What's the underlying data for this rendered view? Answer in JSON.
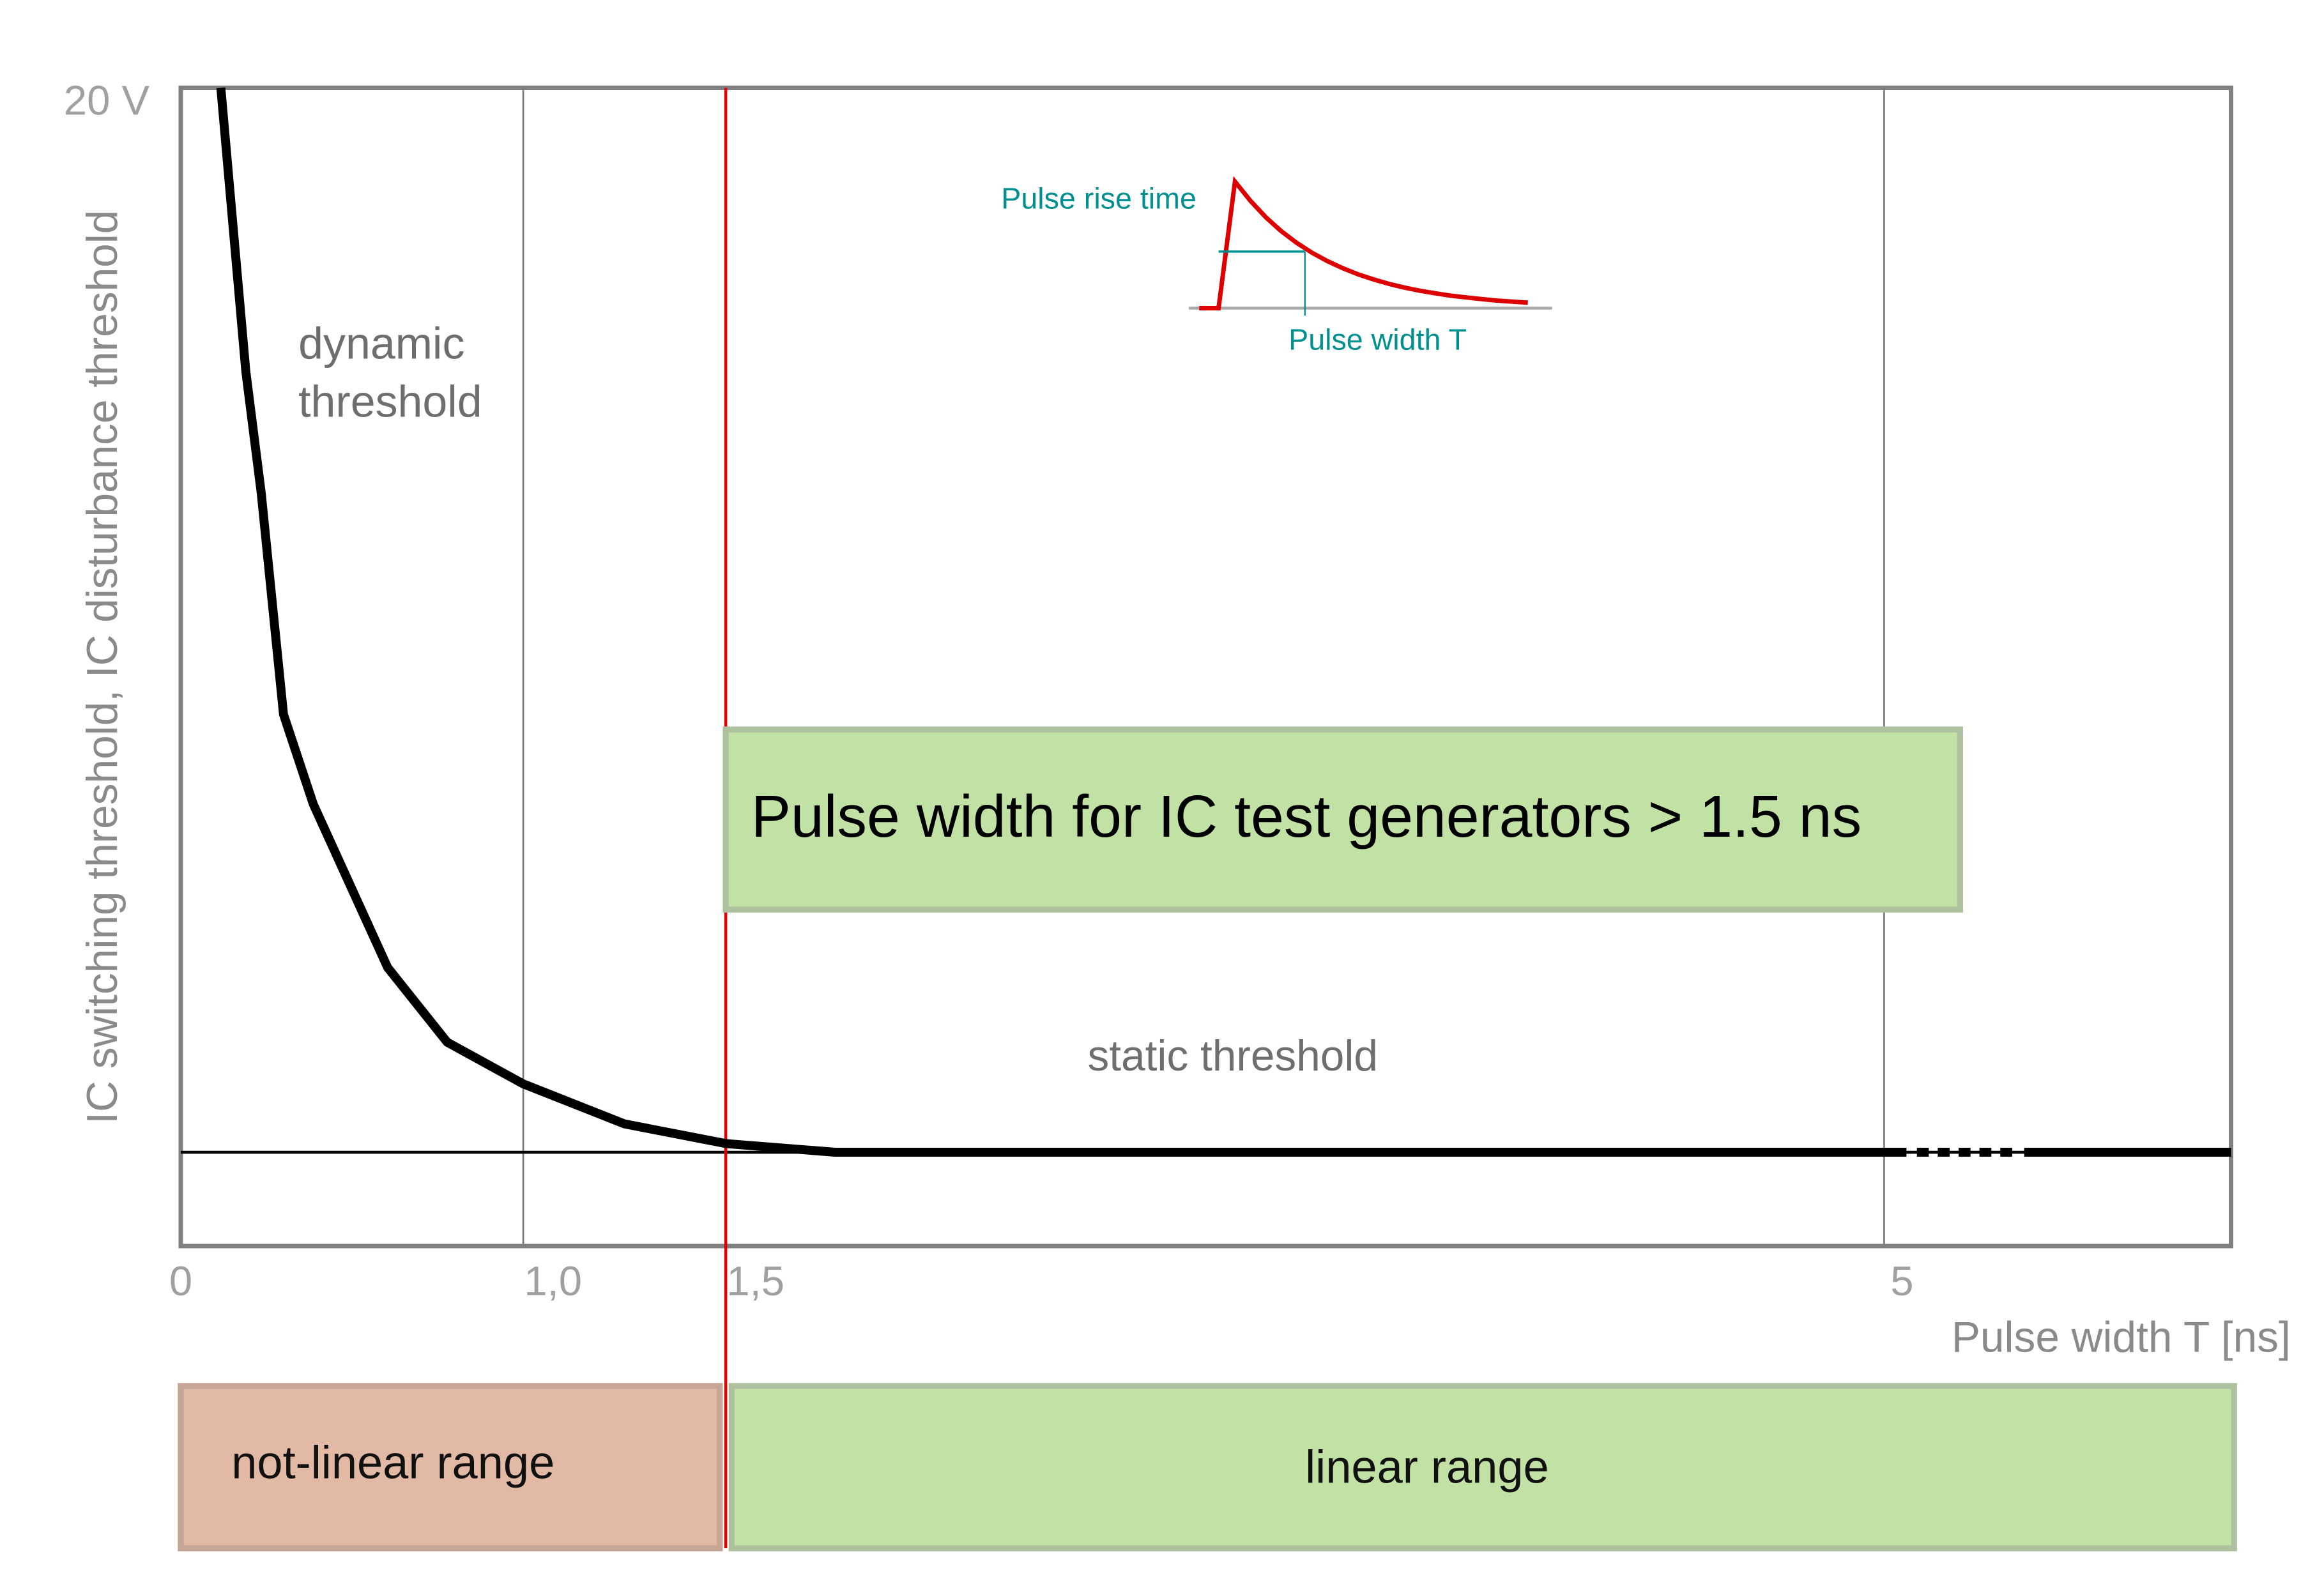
{
  "chart_data": {
    "type": "line",
    "title": "",
    "xlabel": "Pulse width T [ns]",
    "ylabel": "IC switching threshold, IC disturbance threshold",
    "y_max_label": "20 V",
    "ylim": [
      0,
      20
    ],
    "x_ticks": [
      {
        "value": 0,
        "label": "0"
      },
      {
        "value": 1.0,
        "label": "1,0"
      },
      {
        "value": 1.5,
        "label": "1,5"
      },
      {
        "value": 5,
        "label": "5"
      }
    ],
    "x_scale": "non-linear (piecewise)",
    "grid": "vertical lines at 1,0 and 5",
    "series": [
      {
        "color": "#000000",
        "points": [
          [
            0.117,
            20
          ],
          [
            0.19,
            15.1
          ],
          [
            0.235,
            13.0
          ],
          [
            0.3,
            9.18
          ],
          [
            0.387,
            7.63
          ],
          [
            0.604,
            4.81
          ],
          [
            0.778,
            3.52
          ],
          [
            1.0,
            2.8
          ],
          [
            1.25,
            2.11
          ],
          [
            1.5,
            1.77
          ],
          [
            1.83,
            1.62
          ],
          [
            5.5,
            1.62
          ]
        ]
      }
    ],
    "static_threshold_v": 1.62,
    "marker_line": {
      "x": 1.5,
      "color": "#e00000"
    },
    "annotations": {
      "dynamic": [
        "dynamic",
        "threshold"
      ],
      "static": "static threshold",
      "callout": "Pulse width for IC test generators > 1.5 ns"
    },
    "inset": {
      "rise_label": "Pulse rise time",
      "width_label": "Pulse width T",
      "pulse_color": "#dd0000",
      "label_color": "#009090"
    },
    "ranges": [
      {
        "label": "not-linear range",
        "from": 0,
        "to": 1.5,
        "color": "#e2b9a5"
      },
      {
        "label": "linear range",
        "from": 1.5,
        "to": 5.5,
        "color": "#c1e1a5"
      }
    ]
  }
}
